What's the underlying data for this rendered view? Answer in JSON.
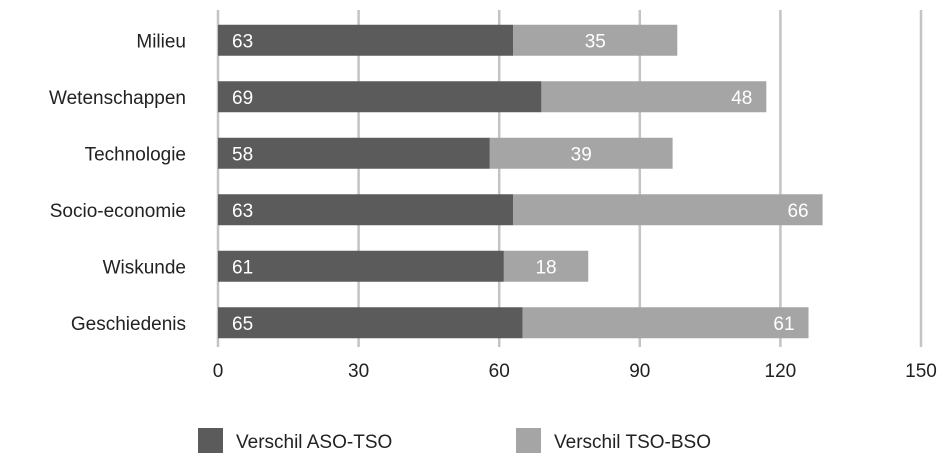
{
  "chart_data": {
    "type": "bar",
    "orientation": "horizontal",
    "stacked": true,
    "categories": [
      "Milieu",
      "Wetenschappen",
      "Technologie",
      "Socio-economie",
      "Wiskunde",
      "Geschiedenis"
    ],
    "series": [
      {
        "name": "Verschil ASO-TSO",
        "values": [
          63,
          69,
          58,
          63,
          61,
          65
        ],
        "color": "#5b5b5b"
      },
      {
        "name": "Verschil TSO-BSO",
        "values": [
          35,
          48,
          39,
          66,
          18,
          61
        ],
        "color": "#a5a5a5"
      }
    ],
    "x_ticks": [
      "0",
      "30",
      "60",
      "90",
      "120",
      "150"
    ],
    "xlim": [
      0,
      150
    ],
    "grid": true,
    "legend_position": "bottom",
    "data_labels": true
  }
}
